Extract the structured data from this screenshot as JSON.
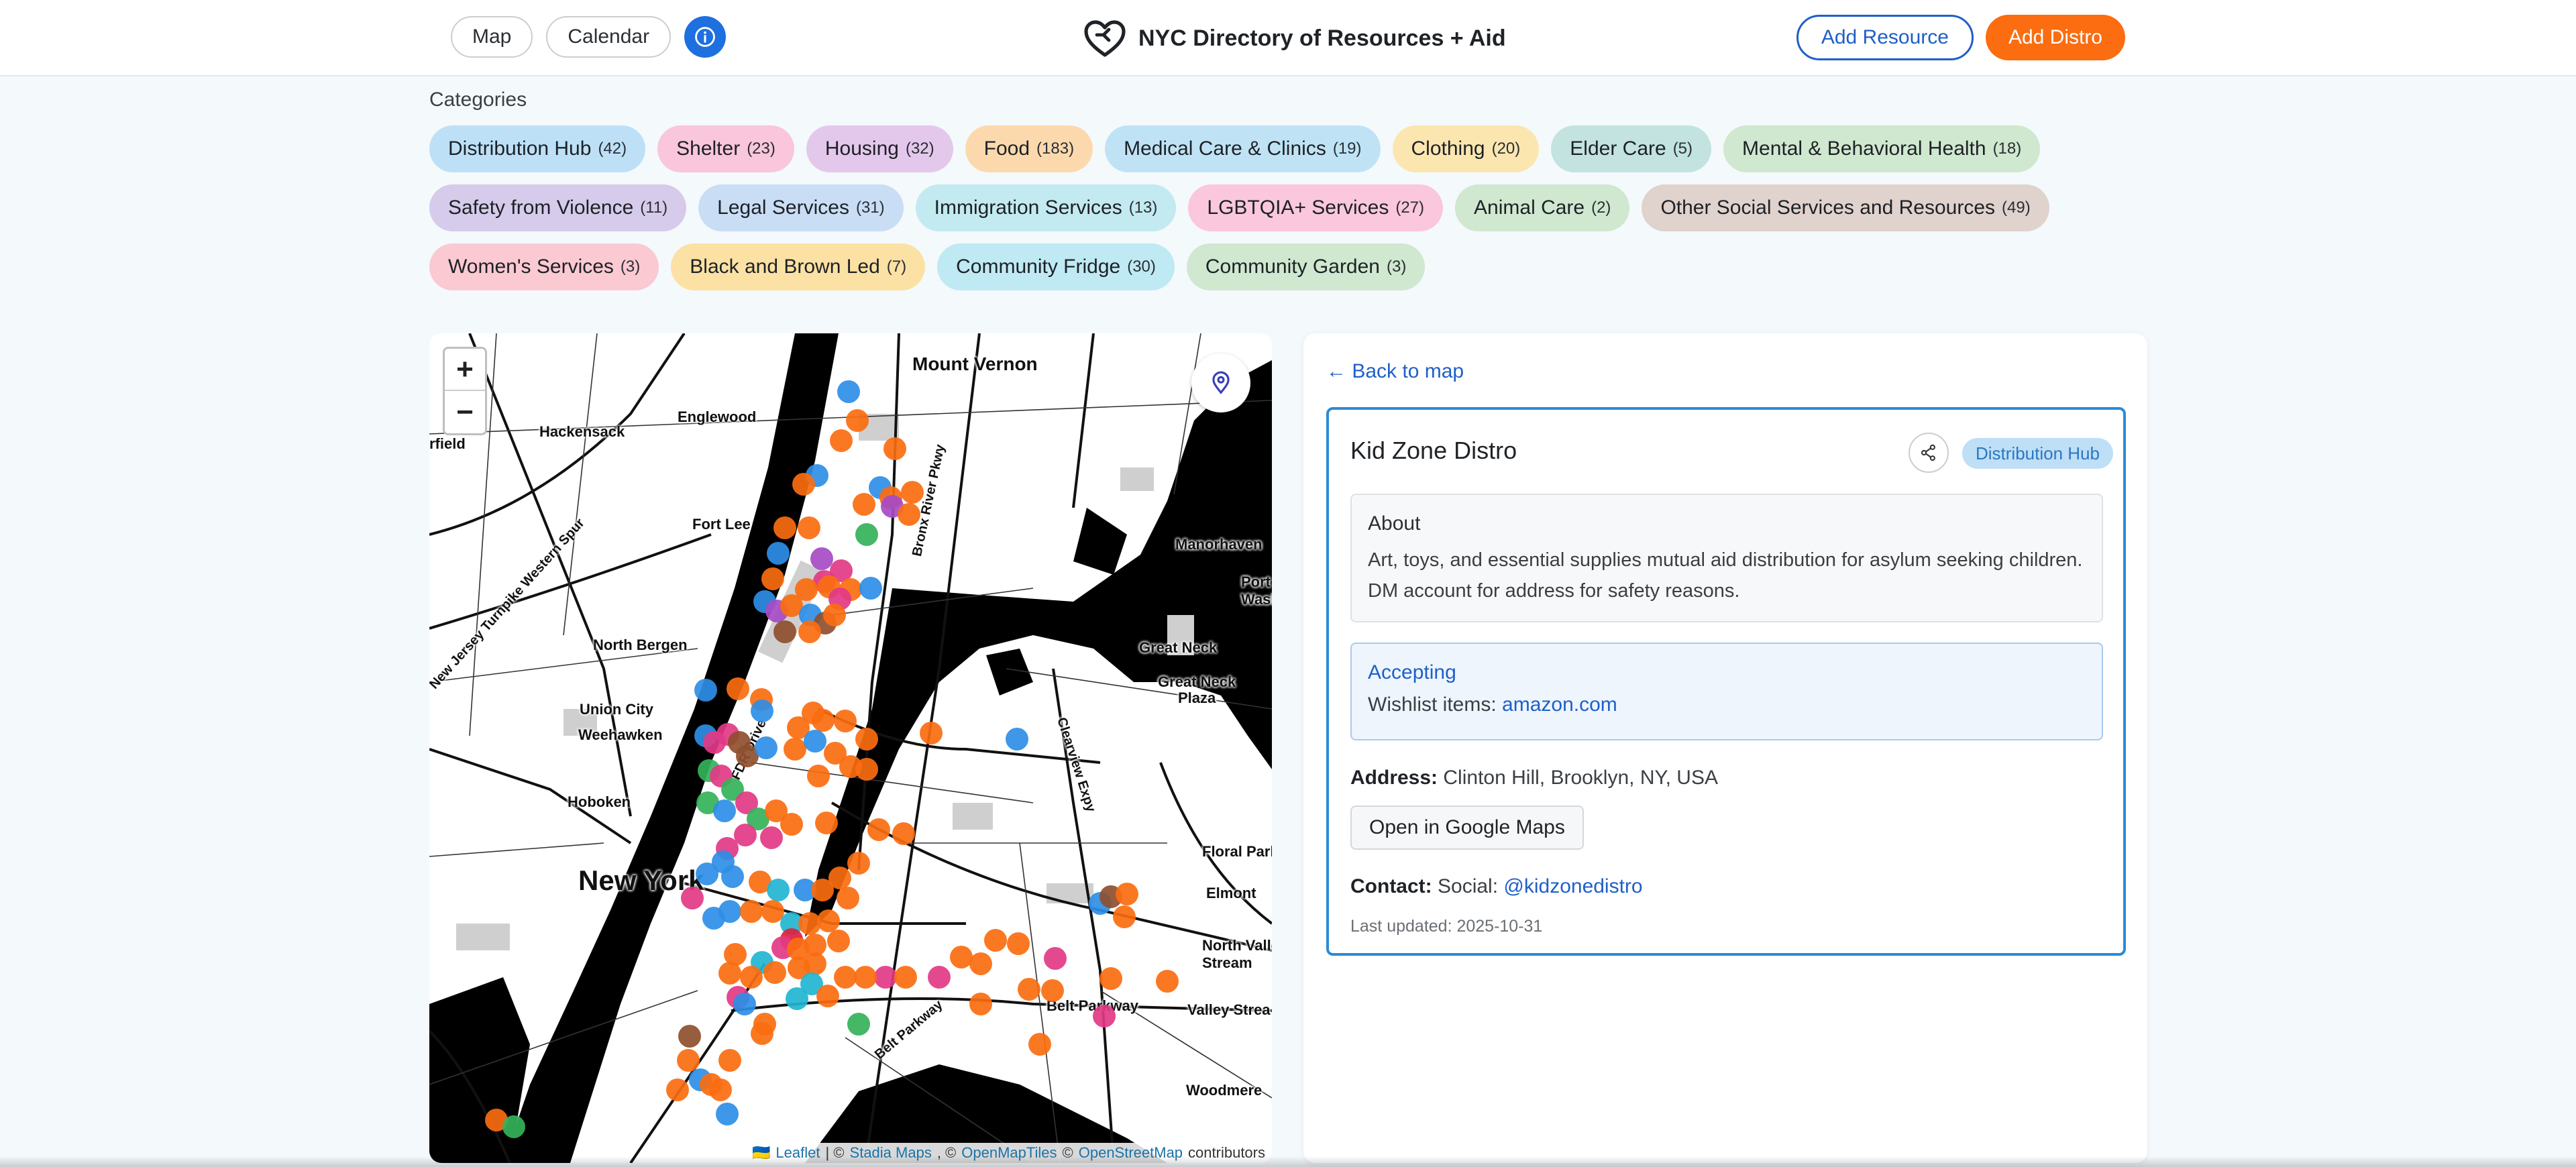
{
  "header": {
    "nav": {
      "map_label": "Map",
      "calendar_label": "Calendar"
    },
    "title": "NYC Directory of Resources + Aid",
    "add_resource_label": "Add Resource",
    "add_distro_label": "Add Distro"
  },
  "categories": {
    "title": "Categories",
    "items": [
      {
        "label": "Distribution Hub",
        "count": "(42)",
        "color": "#bde0f7"
      },
      {
        "label": "Shelter",
        "count": "(23)",
        "color": "#f9c6dc"
      },
      {
        "label": "Housing",
        "count": "(32)",
        "color": "#e3c8ec"
      },
      {
        "label": "Food",
        "count": "(183)",
        "color": "#fcd9ad"
      },
      {
        "label": "Medical Care & Clinics",
        "count": "(19)",
        "color": "#bfe3f5"
      },
      {
        "label": "Clothing",
        "count": "(20)",
        "color": "#fce6b0"
      },
      {
        "label": "Elder Care",
        "count": "(5)",
        "color": "#c2e3e0"
      },
      {
        "label": "Mental & Behavioral Health",
        "count": "(18)",
        "color": "#cfe8cf"
      },
      {
        "label": "Safety from Violence",
        "count": "(11)",
        "color": "#d6cbea"
      },
      {
        "label": "Legal Services",
        "count": "(31)",
        "color": "#c9def5"
      },
      {
        "label": "Immigration Services",
        "count": "(13)",
        "color": "#c2eaf0"
      },
      {
        "label": "LGBTQIA+ Services",
        "count": "(27)",
        "color": "#fac7dd"
      },
      {
        "label": "Animal Care",
        "count": "(2)",
        "color": "#cfe8cf"
      },
      {
        "label": "Other Social Services and Resources",
        "count": "(49)",
        "color": "#e0d2cc"
      },
      {
        "label": "Women's Services",
        "count": "(3)",
        "color": "#fbc9d2"
      },
      {
        "label": "Black and Brown Led",
        "count": "(7)",
        "color": "#fce1a4"
      },
      {
        "label": "Community Fridge",
        "count": "(30)",
        "color": "#bfe9f3"
      },
      {
        "label": "Community Garden",
        "count": "(3)",
        "color": "#cfe8cf"
      }
    ]
  },
  "map": {
    "zoom_in": "+",
    "zoom_out": "−",
    "labels": {
      "mount_vernon": "Mount Vernon",
      "hackensack": "Hackensack",
      "englewood": "Englewood",
      "fairfield": "rfield",
      "fort_lee": "Fort Lee",
      "manorhaven": "Manorhaven",
      "port_washington": "Port\nWashing",
      "north_bergen": "North Bergen",
      "great_neck": "Great Neck",
      "great_neck_plaza": "Great Neck\nPlaza",
      "union_city": "Union City",
      "weehawken": "Weehawken",
      "hoboken": "Hoboken",
      "floral_park": "Floral Park",
      "elmont": "Elmont",
      "new_york": "New York",
      "north_valley": "North Valle\nStream",
      "belt_parkway": "Belt Parkway",
      "valley_stream": "Valley Strea",
      "woodmere": "Woodmere",
      "nj_turnpike": "New Jersey Turnpike Western Spur",
      "fdr_drive": "FDR Drive",
      "bronx_river_pkwy": "Bronx River Pkwy",
      "clearview_expy": "Clearview Expy",
      "belt_pkwy_diag": "Belt Parkway"
    },
    "attribution": {
      "flag": "🇺🇦",
      "leaflet": "Leaflet",
      "sep1": "| ©",
      "stadia": "Stadia Maps",
      "sep2": ", ©",
      "omt": "OpenMapTiles",
      "sep3": "©",
      "osm": "OpenStreetMap",
      "contributors": "contributors"
    },
    "marker_colors": {
      "orange": "#fb6d10",
      "blue": "#2e8ee6",
      "pink": "#e23a86",
      "purple": "#a64bc6",
      "green": "#34b25a",
      "brown": "#8e4f2e",
      "teal": "#22b5d3",
      "red": "#e0203f"
    }
  },
  "detail": {
    "back_label": "← Back to map",
    "title": "Kid Zone Distro",
    "badge": "Distribution Hub",
    "about_heading": "About",
    "about_text": "Art, toys, and essential supplies mutual aid distribution for asylum seeking children. DM account for address for safety reasons.",
    "accepting_heading": "Accepting",
    "accepting_prefix": "Wishlist items:",
    "accepting_link": "amazon.com",
    "address_label": "Address:",
    "address_value": "Clinton Hill, Brooklyn, NY, USA",
    "gmaps_label": "Open in Google Maps",
    "contact_label": "Contact:",
    "contact_prefix": "Social:",
    "contact_link": "@kidzonedistro",
    "updated": "Last updated: 2025-10-31"
  }
}
